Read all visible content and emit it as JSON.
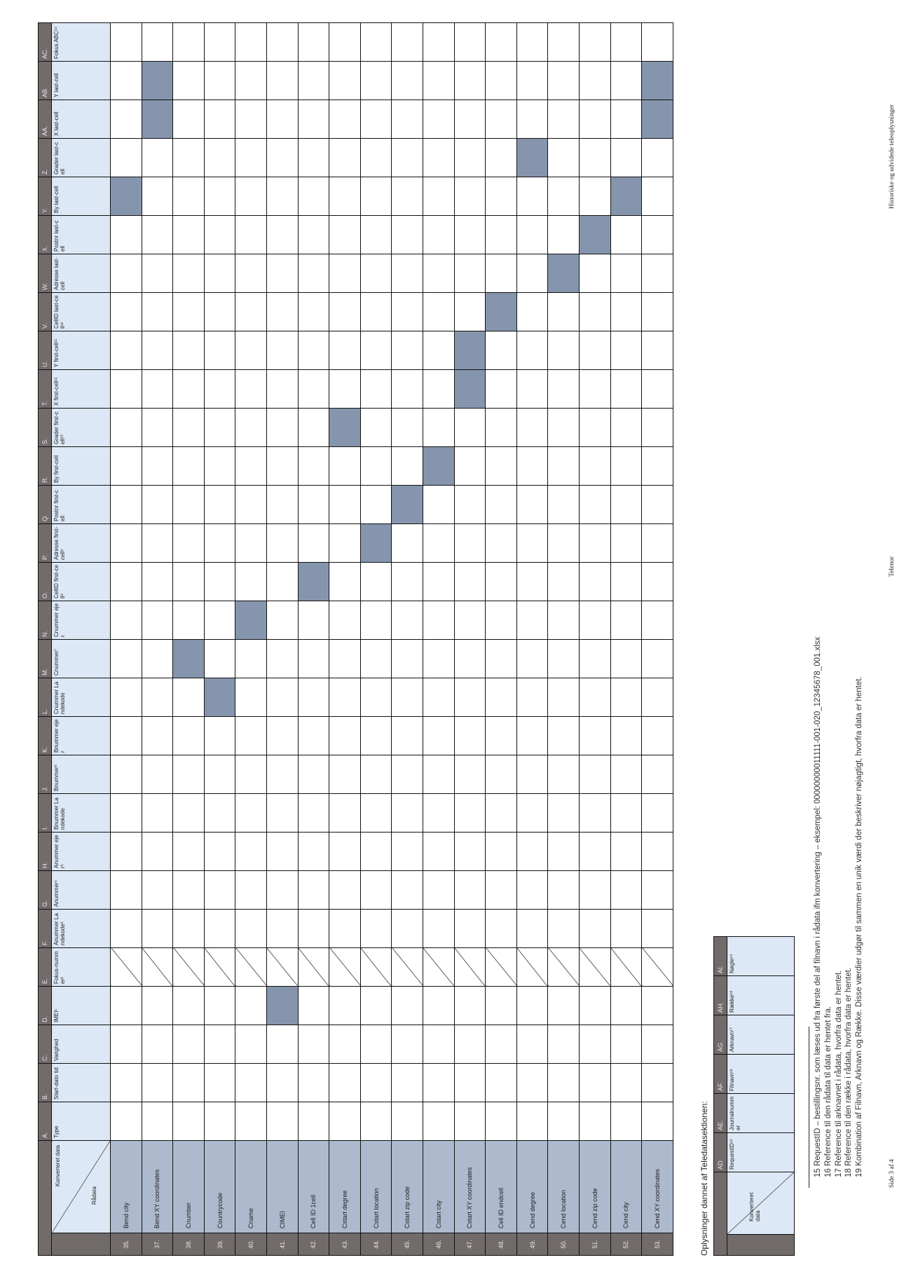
{
  "main_table": {
    "corner_top": "Konverteret data",
    "corner_bottom": "Rådata",
    "columns": [
      {
        "letter": "A.",
        "label": "Type"
      },
      {
        "letter": "B.",
        "label": "Start-dato tid"
      },
      {
        "letter": "C.",
        "label": "Varighed"
      },
      {
        "letter": "D.",
        "label": "IMEI¹"
      },
      {
        "letter": "E.",
        "label": "Fokus-nummer²"
      },
      {
        "letter": "F.",
        "label": "Anummer Landekode³"
      },
      {
        "letter": "G.",
        "label": "Anummer⁴"
      },
      {
        "letter": "H.",
        "label": "Anummer ejer⁵"
      },
      {
        "letter": "I.",
        "label": "Bnummer Landekode"
      },
      {
        "letter": "J.",
        "label": "Bnummer⁶"
      },
      {
        "letter": "K.",
        "label": "Bnummer ejer"
      },
      {
        "letter": "L.",
        "label": "Cnummer Landekode"
      },
      {
        "letter": "M.",
        "label": "Cnummer⁷"
      },
      {
        "letter": "N.",
        "label": "Cnummer ejer"
      },
      {
        "letter": "O.",
        "label": "CellID first-cell⁸"
      },
      {
        "letter": "P.",
        "label": "Adresse first-cell⁹"
      },
      {
        "letter": "Q.",
        "label": "Postnr first-cell"
      },
      {
        "letter": "R.",
        "label": "By first-cell"
      },
      {
        "letter": "S.",
        "label": "Grader first-cell¹⁰"
      },
      {
        "letter": "T.",
        "label": "X first-cell¹¹"
      },
      {
        "letter": "U.",
        "label": "Y first-cell¹¹"
      },
      {
        "letter": "V.",
        "label": "CellID last-cell¹²"
      },
      {
        "letter": "W.",
        "label": "Adresse last-cell"
      },
      {
        "letter": "X.",
        "label": "Postnr last-cell"
      },
      {
        "letter": "Y.",
        "label": "By last-cell"
      },
      {
        "letter": "Z.",
        "label": "Grader last-cell"
      },
      {
        "letter": "AA.",
        "label": "X last-cell"
      },
      {
        "letter": "AB.",
        "label": "Y last-cell"
      },
      {
        "letter": "AC.",
        "label": "Fokus ABC¹⁴"
      }
    ],
    "hatched_column": "E.",
    "rows": [
      {
        "num": "35.",
        "label": "Bend city",
        "marked": [
          "Y."
        ]
      },
      {
        "num": "37.",
        "label": "Bend XY coordinates",
        "marked": [
          "AA.",
          "AB."
        ]
      },
      {
        "num": "38.",
        "label": "Cnumber",
        "marked": [
          "M."
        ]
      },
      {
        "num": "39.",
        "label": "Countrycode",
        "marked": [
          "L."
        ]
      },
      {
        "num": "40.",
        "label": "Cname",
        "marked": [
          "N."
        ]
      },
      {
        "num": "41.",
        "label": "CIMEI",
        "marked": [
          "D."
        ]
      },
      {
        "num": "42.",
        "label": "Cell ID 1cell",
        "marked": [
          "O."
        ]
      },
      {
        "num": "43.",
        "label": "Cstart degree",
        "marked": [
          "S."
        ]
      },
      {
        "num": "44.",
        "label": "Cstart location",
        "marked": [
          "P."
        ]
      },
      {
        "num": "45.",
        "label": "Cstart zip code",
        "marked": [
          "Q."
        ]
      },
      {
        "num": "46.",
        "label": "Cstart city",
        "marked": [
          "R."
        ]
      },
      {
        "num": "47.",
        "label": "Cstart XY coordinates",
        "marked": [
          "T.",
          "U."
        ]
      },
      {
        "num": "48.",
        "label": "Cell ID endcell",
        "marked": [
          "V."
        ]
      },
      {
        "num": "49.",
        "label": "Cend degree",
        "marked": [
          "Z."
        ]
      },
      {
        "num": "50.",
        "label": "Cend location",
        "marked": [
          "W."
        ]
      },
      {
        "num": "51.",
        "label": "Cend zip code",
        "marked": [
          "X."
        ]
      },
      {
        "num": "52.",
        "label": "Cend city",
        "marked": [
          "Y."
        ]
      },
      {
        "num": "53.",
        "label": "Cend XY coordinates",
        "marked": [
          "AA.",
          "AB."
        ]
      }
    ]
  },
  "section_heading": "Oplysninger dannet af Teledatasektionen:",
  "second_table": {
    "corner": "Konverteret data",
    "columns": [
      {
        "letter": "AD.",
        "label": "RequestID¹⁵"
      },
      {
        "letter": "AE.",
        "label": "Journalnummer"
      },
      {
        "letter": "AF.",
        "label": "Filnavn¹⁶"
      },
      {
        "letter": "AG.",
        "label": "Arknavn¹⁷"
      },
      {
        "letter": "AH.",
        "label": "Række¹⁸"
      },
      {
        "letter": "AI.",
        "label": "Nøgle¹⁹"
      }
    ]
  },
  "footnotes": [
    "15 RequestID – bestillingsnr. som læses ud fra første del af filnavn i rådata ifm konvertering – eksempel: 00000000011111-001-020_12345678_001.xlsx",
    "16 Reference til den rådata til data er hentet fra.",
    "17 Reference til arknavnet i rådata, hvorfra data er hentet.",
    "18 Reference til den række i rådata, hvorfra data er hentet.",
    "19 Kombination af Filnavn, Arknavn og Række. Disse værdier udgør til sammen en unik værdi der beskriver nøjagtigt, hvorfra data er hentet."
  ],
  "footer": {
    "page": "Side 3 af 4",
    "company": "Telenor",
    "title": "Historiske og udvidede teleoplysninger"
  },
  "colors": {
    "marked": "#8595ad",
    "header": "#dce8f5",
    "row_label": "#adb9cc",
    "dark": "#716b6a"
  }
}
